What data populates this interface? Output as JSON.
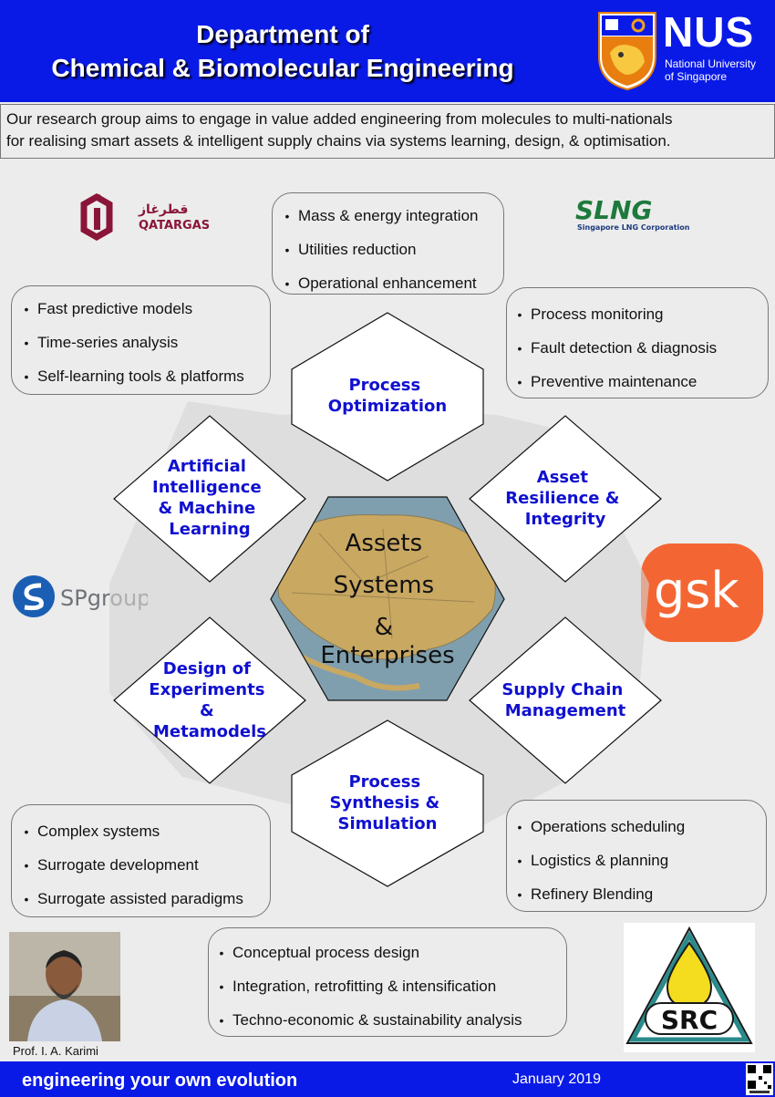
{
  "header": {
    "title_line1": "Department of",
    "title_line2": "Chemical & Biomolecular Engineering",
    "nus": {
      "name": "NUS",
      "sub1": "National University",
      "sub2": "of Singapore"
    }
  },
  "intro": {
    "line1": "Our research group aims to engage in value added engineering from molecules to multi-nationals",
    "line2": "for realising smart assets & intelligent supply chains  via systems learning, design, & optimisation."
  },
  "logos": {
    "qatargas": "QATARGAS",
    "qatargas_arabic": "قطرغاز",
    "slng": "SLNG",
    "slng_sub": "Singapore LNG Corporation",
    "spgroup": "SPgroup",
    "gsk": "gsk",
    "src": "SRC"
  },
  "boxes": {
    "top": [
      "Mass & energy integration",
      "Utilities reduction",
      "Operational enhancement"
    ],
    "upper_left": [
      "Fast predictive models",
      "Time-series analysis",
      "Self-learning tools & platforms"
    ],
    "upper_right": [
      "Process monitoring",
      "Fault detection & diagnosis",
      "Preventive maintenance"
    ],
    "lower_left": [
      "Complex systems",
      "Surrogate development",
      "Surrogate assisted paradigms"
    ],
    "lower_right": [
      "Operations scheduling",
      "Logistics & planning",
      "Refinery Blending"
    ],
    "bottom": [
      "Conceptual process design",
      "Integration, retrofitting & intensification",
      "Techno-economic & sustainability analysis"
    ]
  },
  "hexagons": {
    "top": [
      "Process",
      "Optimization"
    ],
    "upper_left": [
      "Artificial",
      "Intelligence",
      "& Machine",
      "Learning"
    ],
    "upper_right": [
      "Asset",
      "Resilience &",
      "Integrity"
    ],
    "lower_left": [
      "Design of",
      "Experiments",
      "&",
      "Metamodels"
    ],
    "lower_right": [
      "Supply Chain",
      "Management"
    ],
    "bottom": [
      "Process",
      "Synthesis &",
      "Simulation"
    ],
    "center": [
      "Assets",
      "Systems",
      "&",
      "Enterprises"
    ]
  },
  "colors": {
    "hex_text": "#1010d0",
    "header_blue": "#0a1ae6",
    "land": "#c9a862",
    "sea": "#7f9fae"
  },
  "person": {
    "caption": "Prof. I. A. Karimi"
  },
  "footer": {
    "motto": "engineering your own evolution",
    "date": "January 2019"
  }
}
